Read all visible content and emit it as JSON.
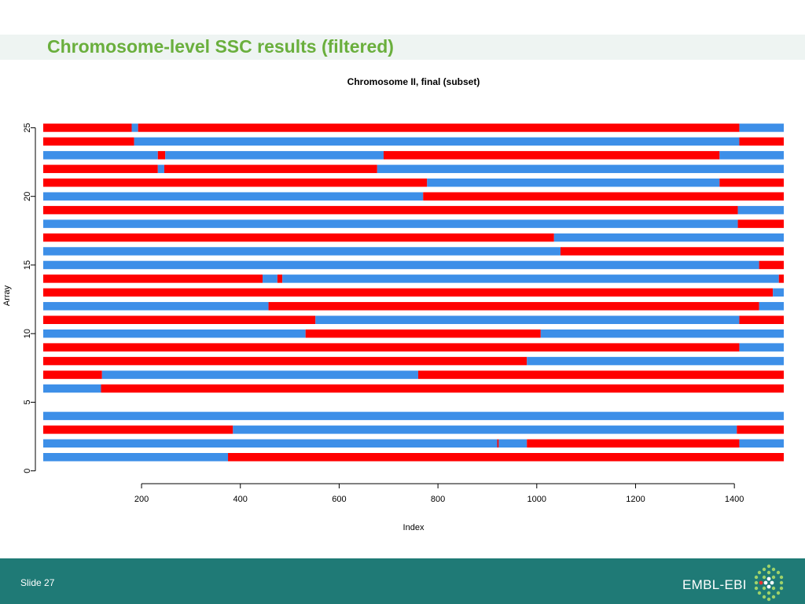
{
  "slide": {
    "title": "Chromosome-level SSC results (filtered)",
    "slide_number": "Slide 27",
    "org_name": "EMBL-EBI"
  },
  "colors": {
    "red": "#ff0000",
    "blue": "#3d8fe8",
    "title_green": "#6aaf3d",
    "footer_teal": "#1f7a76",
    "title_band": "#eef4f2"
  },
  "chart_data": {
    "type": "bar",
    "title": "Chromosome II, final (subset)",
    "xlabel": "Index",
    "ylabel": "Array",
    "xlim": [
      1,
      1500
    ],
    "ylim": [
      0,
      25
    ],
    "x_ticks": [
      200,
      400,
      600,
      800,
      1000,
      1200,
      1400
    ],
    "y_ticks": [
      0,
      5,
      10,
      15,
      20,
      25
    ],
    "grid": false,
    "legend": "none",
    "series": [
      {
        "array": 1,
        "segments": [
          {
            "start": 1,
            "end": 375,
            "state": "blue"
          },
          {
            "start": 375,
            "end": 1500,
            "state": "red"
          }
        ]
      },
      {
        "array": 2,
        "segments": [
          {
            "start": 1,
            "end": 920,
            "state": "blue"
          },
          {
            "start": 920,
            "end": 923,
            "state": "red"
          },
          {
            "start": 923,
            "end": 980,
            "state": "blue"
          },
          {
            "start": 980,
            "end": 1410,
            "state": "red"
          },
          {
            "start": 1410,
            "end": 1500,
            "state": "blue"
          }
        ]
      },
      {
        "array": 3,
        "segments": [
          {
            "start": 1,
            "end": 385,
            "state": "red"
          },
          {
            "start": 385,
            "end": 1405,
            "state": "blue"
          },
          {
            "start": 1405,
            "end": 1500,
            "state": "red"
          }
        ]
      },
      {
        "array": 4,
        "segments": [
          {
            "start": 1,
            "end": 1500,
            "state": "blue"
          }
        ]
      },
      {
        "array": 6,
        "segments": [
          {
            "start": 1,
            "end": 118,
            "state": "blue"
          },
          {
            "start": 118,
            "end": 1500,
            "state": "red"
          }
        ]
      },
      {
        "array": 7,
        "segments": [
          {
            "start": 1,
            "end": 120,
            "state": "red"
          },
          {
            "start": 120,
            "end": 760,
            "state": "blue"
          },
          {
            "start": 760,
            "end": 1500,
            "state": "red"
          }
        ]
      },
      {
        "array": 8,
        "segments": [
          {
            "start": 1,
            "end": 980,
            "state": "red"
          },
          {
            "start": 980,
            "end": 1500,
            "state": "blue"
          }
        ]
      },
      {
        "array": 9,
        "segments": [
          {
            "start": 1,
            "end": 1410,
            "state": "red"
          },
          {
            "start": 1410,
            "end": 1500,
            "state": "blue"
          }
        ]
      },
      {
        "array": 10,
        "segments": [
          {
            "start": 1,
            "end": 532,
            "state": "blue"
          },
          {
            "start": 532,
            "end": 1008,
            "state": "red"
          },
          {
            "start": 1008,
            "end": 1500,
            "state": "blue"
          }
        ]
      },
      {
        "array": 11,
        "segments": [
          {
            "start": 1,
            "end": 552,
            "state": "red"
          },
          {
            "start": 552,
            "end": 1410,
            "state": "blue"
          },
          {
            "start": 1410,
            "end": 1500,
            "state": "red"
          }
        ]
      },
      {
        "array": 12,
        "segments": [
          {
            "start": 1,
            "end": 457,
            "state": "blue"
          },
          {
            "start": 457,
            "end": 1450,
            "state": "red"
          },
          {
            "start": 1450,
            "end": 1500,
            "state": "blue"
          }
        ]
      },
      {
        "array": 13,
        "segments": [
          {
            "start": 1,
            "end": 1478,
            "state": "red"
          },
          {
            "start": 1478,
            "end": 1500,
            "state": "blue"
          }
        ]
      },
      {
        "array": 14,
        "segments": [
          {
            "start": 1,
            "end": 445,
            "state": "red"
          },
          {
            "start": 445,
            "end": 475,
            "state": "blue"
          },
          {
            "start": 475,
            "end": 485,
            "state": "red"
          },
          {
            "start": 485,
            "end": 1490,
            "state": "blue"
          },
          {
            "start": 1490,
            "end": 1500,
            "state": "red"
          }
        ]
      },
      {
        "array": 15,
        "segments": [
          {
            "start": 1,
            "end": 1450,
            "state": "blue"
          },
          {
            "start": 1450,
            "end": 1500,
            "state": "red"
          }
        ]
      },
      {
        "array": 16,
        "segments": [
          {
            "start": 1,
            "end": 1048,
            "state": "blue"
          },
          {
            "start": 1048,
            "end": 1500,
            "state": "red"
          }
        ]
      },
      {
        "array": 17,
        "segments": [
          {
            "start": 1,
            "end": 1035,
            "state": "red"
          },
          {
            "start": 1035,
            "end": 1500,
            "state": "blue"
          }
        ]
      },
      {
        "array": 18,
        "segments": [
          {
            "start": 1,
            "end": 1407,
            "state": "blue"
          },
          {
            "start": 1407,
            "end": 1500,
            "state": "red"
          }
        ]
      },
      {
        "array": 19,
        "segments": [
          {
            "start": 1,
            "end": 1407,
            "state": "red"
          },
          {
            "start": 1407,
            "end": 1500,
            "state": "blue"
          }
        ]
      },
      {
        "array": 20,
        "segments": [
          {
            "start": 1,
            "end": 770,
            "state": "blue"
          },
          {
            "start": 770,
            "end": 1500,
            "state": "red"
          }
        ]
      },
      {
        "array": 21,
        "segments": [
          {
            "start": 1,
            "end": 778,
            "state": "red"
          },
          {
            "start": 778,
            "end": 1370,
            "state": "blue"
          },
          {
            "start": 1370,
            "end": 1500,
            "state": "red"
          }
        ]
      },
      {
        "array": 22,
        "segments": [
          {
            "start": 1,
            "end": 233,
            "state": "red"
          },
          {
            "start": 233,
            "end": 246,
            "state": "blue"
          },
          {
            "start": 246,
            "end": 677,
            "state": "red"
          },
          {
            "start": 677,
            "end": 1500,
            "state": "blue"
          }
        ]
      },
      {
        "array": 23,
        "segments": [
          {
            "start": 1,
            "end": 233,
            "state": "blue"
          },
          {
            "start": 233,
            "end": 248,
            "state": "red"
          },
          {
            "start": 248,
            "end": 690,
            "state": "blue"
          },
          {
            "start": 690,
            "end": 1370,
            "state": "red"
          },
          {
            "start": 1370,
            "end": 1500,
            "state": "blue"
          }
        ]
      },
      {
        "array": 24,
        "segments": [
          {
            "start": 1,
            "end": 185,
            "state": "red"
          },
          {
            "start": 185,
            "end": 1410,
            "state": "blue"
          },
          {
            "start": 1410,
            "end": 1500,
            "state": "red"
          }
        ]
      },
      {
        "array": 25,
        "segments": [
          {
            "start": 1,
            "end": 180,
            "state": "red"
          },
          {
            "start": 180,
            "end": 193,
            "state": "blue"
          },
          {
            "start": 193,
            "end": 1410,
            "state": "red"
          },
          {
            "start": 1410,
            "end": 1500,
            "state": "blue"
          }
        ]
      }
    ]
  }
}
